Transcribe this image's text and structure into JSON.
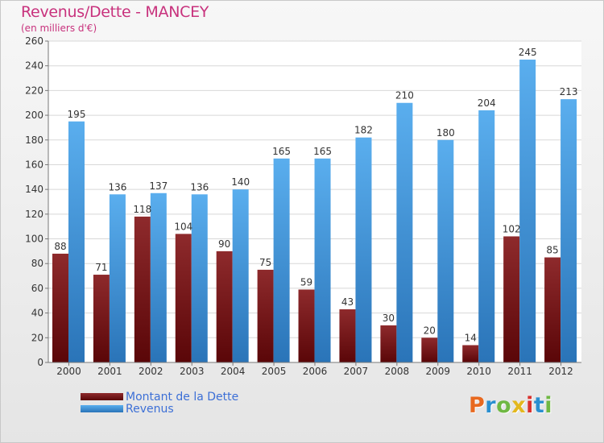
{
  "chart_data": {
    "type": "bar",
    "title": "Revenus/Dette - MANCEY",
    "subtitle": "(en milliers d'€)",
    "categories": [
      "2000",
      "2001",
      "2002",
      "2003",
      "2004",
      "2005",
      "2006",
      "2007",
      "2008",
      "2009",
      "2010",
      "2011",
      "2012"
    ],
    "series": [
      {
        "name": "Montant de la Dette",
        "color": "#7a1416",
        "values": [
          88,
          71,
          118,
          104,
          90,
          75,
          59,
          43,
          30,
          20,
          14,
          102,
          85
        ]
      },
      {
        "name": "Revenus",
        "color": "#3d8fd8",
        "values": [
          195,
          136,
          137,
          136,
          140,
          165,
          165,
          182,
          210,
          180,
          204,
          245,
          213
        ]
      }
    ],
    "ylim": [
      0,
      260
    ],
    "yticks": [
      0,
      20,
      40,
      60,
      80,
      100,
      120,
      140,
      160,
      180,
      200,
      220,
      240,
      260
    ],
    "grid": true,
    "legend_position": "bottom-left"
  },
  "logo": {
    "text": "Proxiti",
    "letters": [
      {
        "char": "P",
        "color": "#e8691f"
      },
      {
        "char": "r",
        "color": "#2a8fd0"
      },
      {
        "char": "o",
        "color": "#6fb843"
      },
      {
        "char": "x",
        "color": "#e3b81e"
      },
      {
        "char": "i",
        "color": "#d9322e"
      },
      {
        "char": "t",
        "color": "#2a8fd0"
      },
      {
        "char": "i",
        "color": "#6fb843"
      }
    ]
  }
}
